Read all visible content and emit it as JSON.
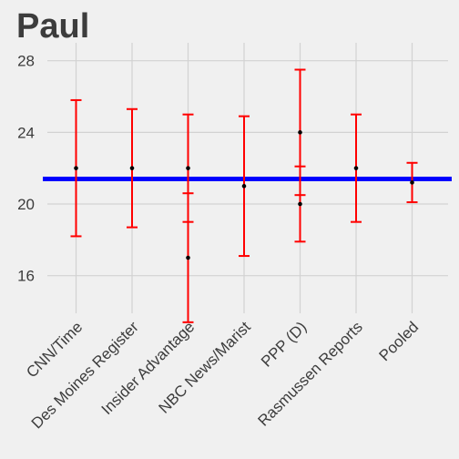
{
  "chart_data": {
    "type": "errorbar",
    "title": "Paul",
    "xlabel": "",
    "ylabel": "",
    "ylim": [
      13.9,
      29.0
    ],
    "yticks": [
      "16",
      "20",
      "24",
      "28"
    ],
    "categories": [
      "CNN/Time",
      "Des Moines Register",
      "Insider Advantage",
      "NBC News/Marist",
      "PPP (D)",
      "Rasmussen Reports",
      "Pooled"
    ],
    "points": [
      {
        "category": "CNN/Time",
        "value": 22.0,
        "low": 18.2,
        "high": 25.8
      },
      {
        "category": "Des Moines Register",
        "value": 22.0,
        "low": 18.7,
        "high": 25.3
      },
      {
        "category": "Insider Advantage",
        "value": 22.0,
        "low": 19.0,
        "high": 25.0
      },
      {
        "category": "Insider Advantage",
        "value": 17.0,
        "low": 13.4,
        "high": 20.6
      },
      {
        "category": "NBC News/Marist",
        "value": 21.0,
        "low": 17.1,
        "high": 24.9
      },
      {
        "category": "PPP (D)",
        "value": 24.0,
        "low": 20.5,
        "high": 27.5
      },
      {
        "category": "PPP (D)",
        "value": 20.0,
        "low": 17.9,
        "high": 22.1
      },
      {
        "category": "Rasmussen Reports",
        "value": 22.0,
        "low": 19.0,
        "high": 25.0
      },
      {
        "category": "Pooled",
        "value": 21.2,
        "low": 20.1,
        "high": 22.3
      }
    ],
    "reference_line": 21.4,
    "grid": true,
    "legend": "none",
    "colors": {
      "errorbar": "#ff0000",
      "point": "#000000",
      "reference": "#0000ff",
      "background": "#f0f0f0",
      "grid": "#d2d2d2",
      "text": "#3c3c3c"
    }
  }
}
